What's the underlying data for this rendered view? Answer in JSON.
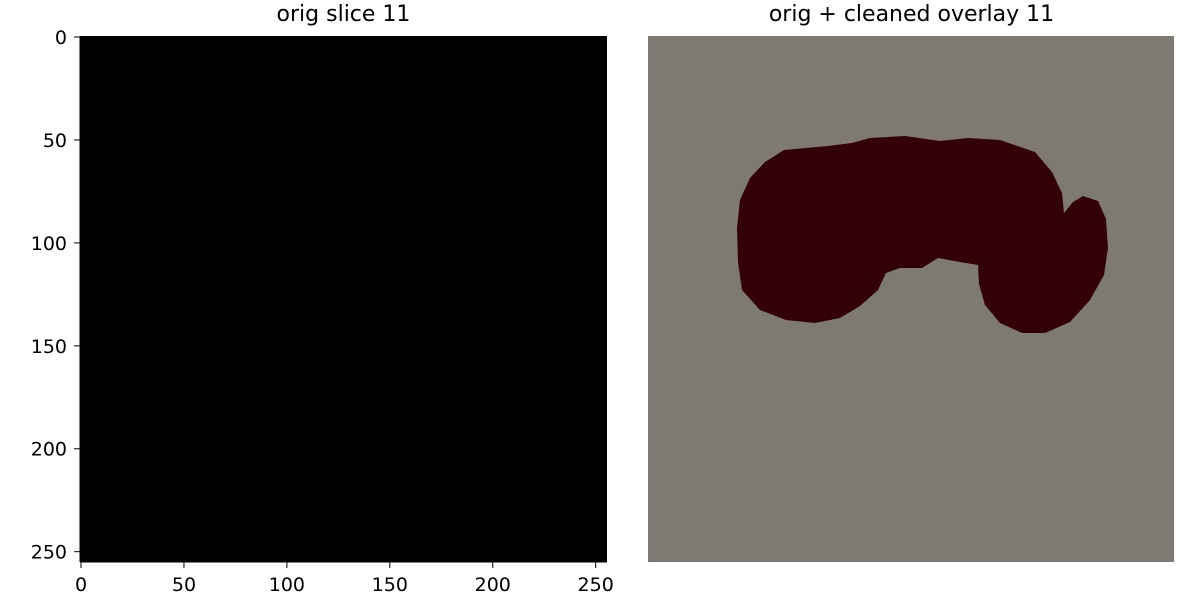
{
  "figure": {
    "left_panel": {
      "title": "orig slice 11",
      "image": "blank black slice",
      "background_color": "#000000",
      "x_ticks": [
        "0",
        "50",
        "100",
        "150",
        "200",
        "250"
      ],
      "y_ticks": [
        "0",
        "50",
        "100",
        "150",
        "200",
        "250"
      ]
    },
    "right_panel": {
      "title": "orig + cleaned overlay 11",
      "background_color": "#7f7974",
      "mask_color": "#330007",
      "mask_shape": "bilobed dark red mask"
    },
    "image_size": [
      256,
      256
    ]
  }
}
